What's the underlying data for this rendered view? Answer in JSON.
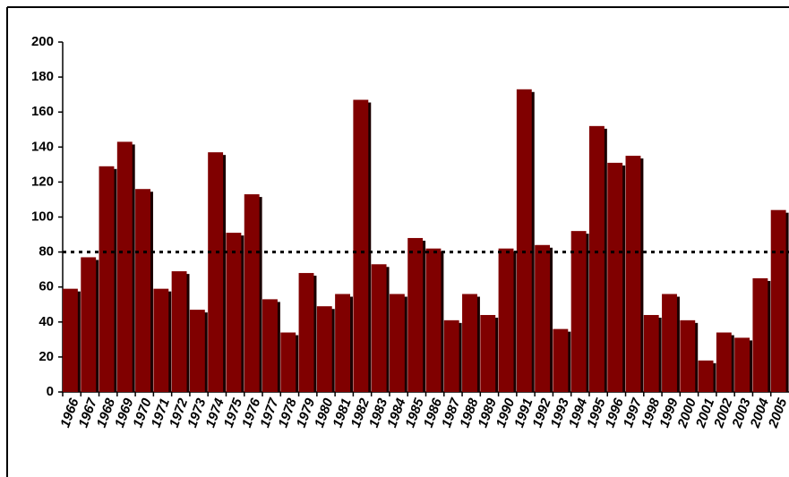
{
  "chart_data": {
    "type": "bar",
    "categories": [
      "1966",
      "1967",
      "1968",
      "1969",
      "1970",
      "1971",
      "1972",
      "1973",
      "1974",
      "1975",
      "1976",
      "1977",
      "1978",
      "1979",
      "1980",
      "1981",
      "1982",
      "1983",
      "1984",
      "1985",
      "1986",
      "1987",
      "1988",
      "1989",
      "1990",
      "1991",
      "1992",
      "1993",
      "1994",
      "1995",
      "1996",
      "1997",
      "1998",
      "1999",
      "2000",
      "2001",
      "2002",
      "2003",
      "2004",
      "2005"
    ],
    "values": [
      59,
      77,
      129,
      143,
      116,
      59,
      69,
      47,
      137,
      91,
      113,
      53,
      34,
      68,
      49,
      56,
      167,
      73,
      56,
      88,
      82,
      41,
      56,
      44,
      82,
      173,
      84,
      36,
      92,
      152,
      131,
      135,
      44,
      56,
      41,
      18,
      34,
      31,
      65,
      104
    ],
    "color": "#800000",
    "reference_line": 80,
    "ylim": [
      0,
      200
    ],
    "yticks": [
      0,
      20,
      40,
      60,
      80,
      100,
      120,
      140,
      160,
      180,
      200
    ]
  }
}
